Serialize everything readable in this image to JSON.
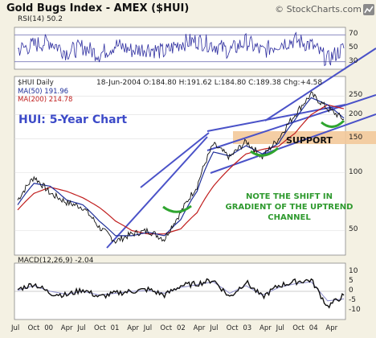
{
  "header": {
    "title": "Gold Bugs Index - AMEX ($HUI)",
    "brand": "© StockCharts.com"
  },
  "rsi_panel": {
    "label": "RSI(14) 50.2"
  },
  "price_panel": {
    "label": "$HUI Daily",
    "quote": "18-Jun-2004 O:184.80 H:191.62 L:184.80 C:189.38 Chg:+4.58",
    "ma50": "MA(50) 191.96",
    "ma200": "MA(200) 214.78",
    "headline": "HUI: 5-Year Chart",
    "support_label": "SUPPORT",
    "note": "NOTE THE SHIFT IN GRADIENT OF THE UPTREND CHANNEL"
  },
  "macd_panel": {
    "label": "MACD(12,26,9) -2.04"
  },
  "colors": {
    "background": "#f4f1e3",
    "price": "#111111",
    "ma50": "#1f2f9a",
    "ma200": "#c01d1d",
    "annotation_blue": "#4a52c8",
    "annotation_green": "#2fa52f",
    "support_zone": "#f3c99a"
  },
  "chart_data": [
    {
      "type": "line",
      "title": "RSI(14) 50.2",
      "ylim": [
        20,
        80
      ],
      "ytick_labels": [
        "70",
        "50",
        "30"
      ],
      "reference_lines": [
        70,
        30
      ],
      "x": [
        "Jul 99",
        "Oct 99",
        "Jan 00",
        "Apr 00",
        "Jul 00",
        "Oct 00",
        "Jan 01",
        "Apr 01",
        "Jul 01",
        "Oct 01",
        "Jan 02",
        "Apr 02",
        "Jul 02",
        "Oct 02",
        "Jan 03",
        "Apr 03",
        "Jul 03",
        "Oct 03",
        "Jan 04",
        "Apr 04",
        "Jun 04"
      ],
      "series": [
        {
          "name": "RSI(14)",
          "values": [
            48,
            55,
            60,
            44,
            52,
            41,
            55,
            47,
            50,
            44,
            58,
            61,
            55,
            46,
            60,
            45,
            57,
            62,
            55,
            33,
            50
          ]
        }
      ]
    },
    {
      "type": "line",
      "title": "HUI: 5-Year Chart",
      "scale": "log",
      "ylim": [
        38,
        310
      ],
      "ytick_labels": [
        "250",
        "200",
        "150",
        "100",
        "50"
      ],
      "x_tick_labels": [
        "Jul",
        "Oct",
        "00",
        "Apr",
        "Jul",
        "Oct",
        "01",
        "Apr",
        "Jul",
        "Oct",
        "02",
        "Apr",
        "Jul",
        "Oct",
        "03",
        "Apr",
        "Jul",
        "Oct",
        "04",
        "Apr"
      ],
      "x": [
        "Jul 99",
        "Oct 99",
        "Jan 00",
        "Apr 00",
        "Jul 00",
        "Oct 00",
        "Jan 01",
        "Apr 01",
        "Jul 01",
        "Oct 01",
        "Jan 02",
        "Apr 02",
        "Jul 02",
        "Oct 02",
        "Jan 03",
        "Apr 03",
        "Jul 03",
        "Oct 03",
        "Jan 04",
        "Apr 04",
        "Jun 04"
      ],
      "series": [
        {
          "name": "$HUI Daily",
          "values": [
            72,
            95,
            78,
            70,
            66,
            52,
            44,
            48,
            50,
            45,
            62,
            85,
            140,
            120,
            145,
            120,
            150,
            200,
            255,
            215,
            189.38
          ]
        },
        {
          "name": "MA(50) 191.96",
          "values": [
            68,
            88,
            85,
            72,
            68,
            56,
            47,
            47,
            49,
            47,
            57,
            80,
            128,
            122,
            138,
            125,
            142,
            188,
            245,
            225,
            191.96
          ]
        },
        {
          "name": "MA(200) 214.78",
          "values": [
            64,
            78,
            84,
            80,
            74,
            66,
            56,
            50,
            48,
            48,
            51,
            62,
            85,
            105,
            125,
            132,
            137,
            160,
            200,
            225,
            214.78
          ]
        }
      ],
      "annotations": {
        "support_zone": [
          140,
          155
        ],
        "support_label": "SUPPORT"
      }
    },
    {
      "type": "line",
      "title": "MACD(12,26,9) -2.04",
      "ylim": [
        -14,
        14
      ],
      "ytick_labels": [
        "10",
        "5",
        "0",
        "-5",
        "-10"
      ],
      "x": [
        "Jul 99",
        "Oct 99",
        "Jan 00",
        "Apr 00",
        "Jul 00",
        "Oct 00",
        "Jan 01",
        "Apr 01",
        "Jul 01",
        "Oct 01",
        "Jan 02",
        "Apr 02",
        "Jul 02",
        "Oct 02",
        "Jan 03",
        "Apr 03",
        "Jul 03",
        "Oct 03",
        "Jan 04",
        "Apr 04",
        "Jun 04"
      ],
      "series": [
        {
          "name": "MACD",
          "values": [
            1,
            4,
            -1,
            -2,
            1,
            -3,
            -1,
            0,
            1,
            -2,
            3,
            4,
            6,
            -3,
            5,
            -3,
            3,
            5,
            6,
            -8,
            -2.04
          ]
        },
        {
          "name": "Signal",
          "values": [
            0.5,
            3,
            0,
            -1.5,
            0,
            -2,
            -1,
            0,
            0.5,
            -1,
            2,
            3.5,
            5,
            -1,
            3,
            -2,
            2,
            4,
            5,
            -5,
            -4
          ]
        }
      ]
    }
  ]
}
